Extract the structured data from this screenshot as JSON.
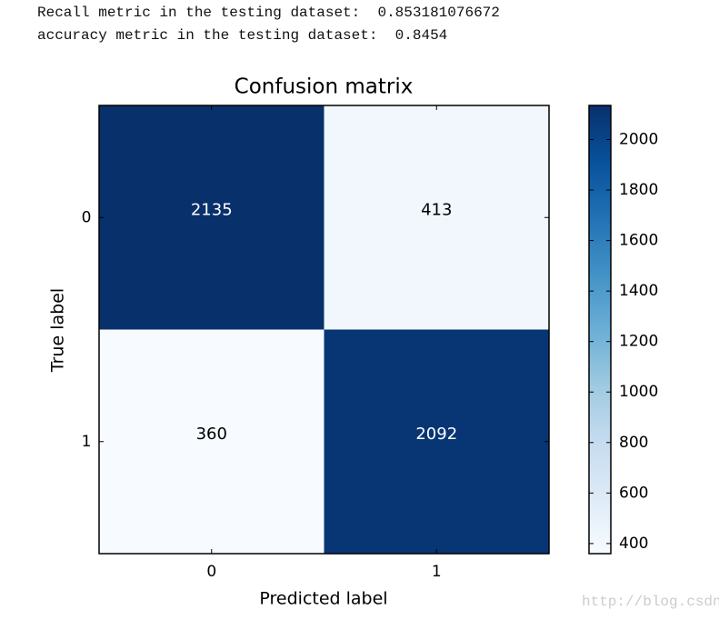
{
  "console_lines": [
    "Recall metric in the testing dataset:  0.853181076672",
    "accuracy metric in the testing dataset:  0.8454"
  ],
  "chart_data": {
    "type": "heatmap",
    "title": "Confusion matrix",
    "x_label": "Predicted label",
    "y_label": "True label",
    "x_categories": [
      "0",
      "1"
    ],
    "y_categories": [
      "0",
      "1"
    ],
    "values": [
      [
        2135,
        413
      ],
      [
        360,
        2092
      ]
    ],
    "colormap": [
      "#f7fbff",
      "#deebf7",
      "#c6dbef",
      "#9ecae1",
      "#6baed6",
      "#4292c6",
      "#2171b5",
      "#08519c",
      "#08306b"
    ],
    "clim": [
      360,
      2135
    ],
    "cticks": [
      400,
      600,
      800,
      1000,
      1200,
      1400,
      1600,
      1800,
      2000
    ]
  },
  "watermark": "http://blog.csdn.net/cskywit"
}
